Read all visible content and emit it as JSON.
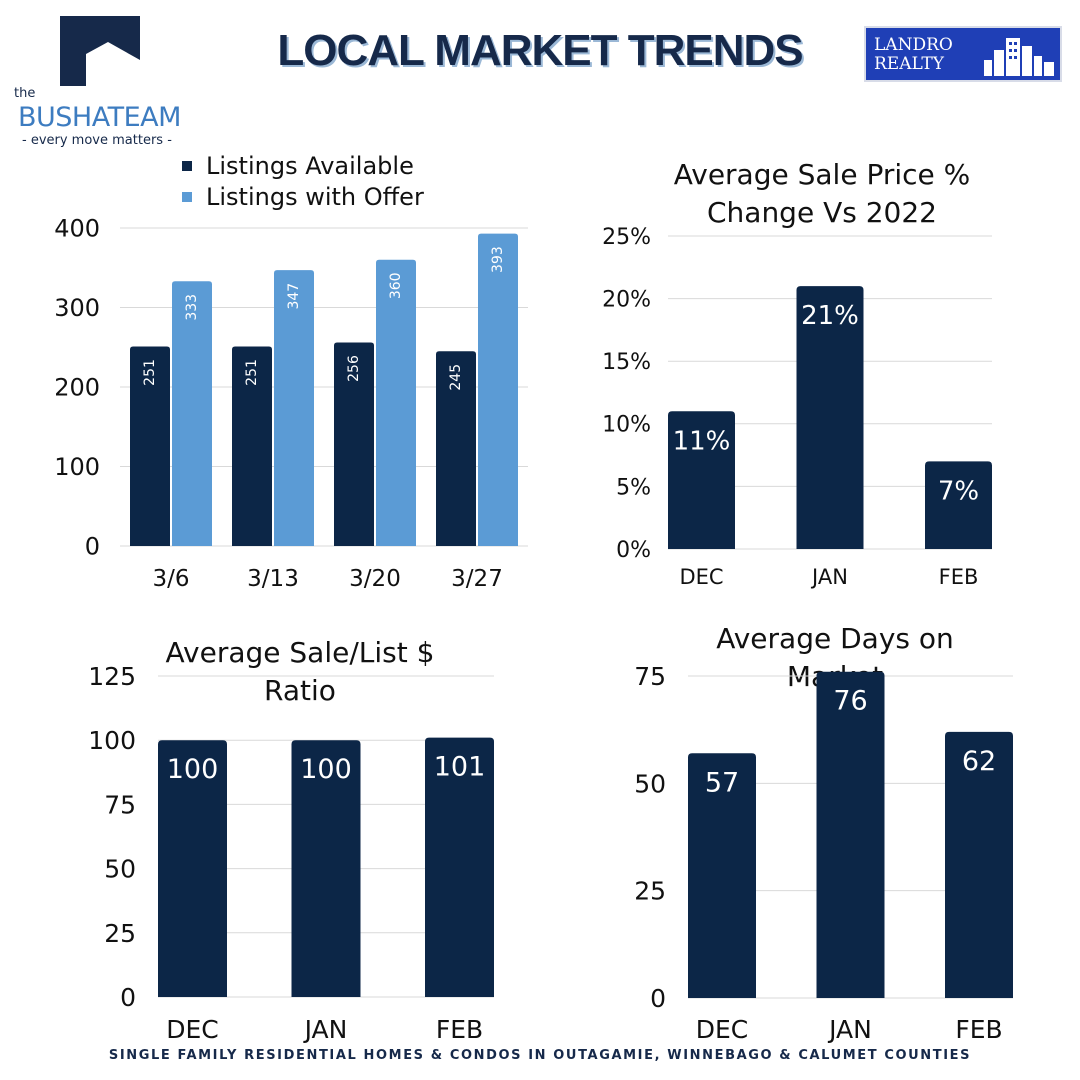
{
  "header": {
    "title": "LOCAL MARKET TRENDS",
    "left_brand": {
      "prefix": "the",
      "name": "BUSHATEAM",
      "tagline": "- every move matters -"
    },
    "right_brand": {
      "line1": "LANDRO",
      "line2": "REALTY"
    }
  },
  "colors": {
    "navy": "#0c2647",
    "light_blue": "#5b9bd5",
    "grid": "#d9d9d9"
  },
  "footer": "SINGLE FAMILY RESIDENTIAL HOMES & CONDOS IN OUTAGAMIE, WINNEBAGO & CALUMET COUNTIES",
  "chart_data": [
    {
      "type": "bar",
      "title": "",
      "categories": [
        "3/6",
        "3/13",
        "3/20",
        "3/27"
      ],
      "series": [
        {
          "name": "Listings Available",
          "color": "#0c2647",
          "values": [
            251,
            251,
            256,
            245
          ]
        },
        {
          "name": "Listings with Offer",
          "color": "#5b9bd5",
          "values": [
            333,
            347,
            360,
            393
          ]
        }
      ],
      "ylim": [
        0,
        400
      ],
      "yticks": [
        0,
        100,
        200,
        300,
        400
      ],
      "ytick_labels": [
        "0",
        "100",
        "200",
        "300",
        "400"
      ],
      "grid": true,
      "legend": "top"
    },
    {
      "type": "bar",
      "title": "Average Sale Price % Change Vs 2022",
      "categories": [
        "DEC",
        "JAN",
        "FEB"
      ],
      "values": [
        11,
        21,
        7
      ],
      "value_labels": [
        "11%",
        "21%",
        "7%"
      ],
      "ylim": [
        0,
        25
      ],
      "yticks": [
        0,
        5,
        10,
        15,
        20,
        25
      ],
      "ytick_labels": [
        "0%",
        "5%",
        "10%",
        "15%",
        "20%",
        "25%"
      ],
      "grid": true
    },
    {
      "type": "bar",
      "title": "Average Sale/List $ Ratio",
      "categories": [
        "DEC",
        "JAN",
        "FEB"
      ],
      "values": [
        100,
        100,
        101
      ],
      "value_labels": [
        "100",
        "100",
        "101"
      ],
      "ylim": [
        0,
        125
      ],
      "yticks": [
        0,
        25,
        50,
        75,
        100,
        125
      ],
      "ytick_labels": [
        "0",
        "25",
        "50",
        "75",
        "100",
        "125"
      ],
      "grid": true
    },
    {
      "type": "bar",
      "title": "Average Days on Market",
      "categories": [
        "DEC",
        "JAN",
        "FEB"
      ],
      "values": [
        57,
        76,
        62
      ],
      "value_labels": [
        "57",
        "76",
        "62"
      ],
      "ylim": [
        0,
        75
      ],
      "yticks": [
        0,
        25,
        50,
        75
      ],
      "ytick_labels": [
        "0",
        "25",
        "50",
        "75"
      ],
      "grid": true
    }
  ]
}
